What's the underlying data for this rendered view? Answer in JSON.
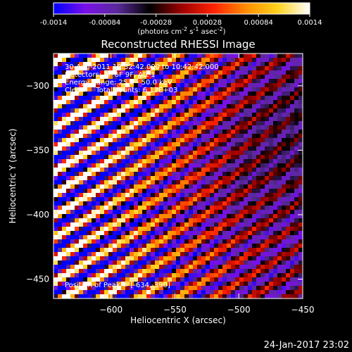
{
  "colors": {
    "background": "#000000",
    "foreground": "#ffffff",
    "colormap": [
      "#0000ff",
      "#7a10e8",
      "#5a2a9a",
      "#000000",
      "#9c0000",
      "#ff2200",
      "#ff8c00",
      "#ffd21e",
      "#ffffff"
    ]
  },
  "colorbar": {
    "min": -0.0014,
    "max": 0.0014,
    "tick_labels": [
      "-0.0014",
      "-0.00084",
      "-0.00028",
      "0.00028",
      "0.00084",
      "0.0014"
    ],
    "tick_values": [
      -0.0014,
      -0.00084,
      -0.00028,
      0.00028,
      0.00084,
      0.0014
    ],
    "unit_label": "(photons cm",
    "unit_exp1": "-2",
    "unit_mid": " s",
    "unit_exp2": "-1",
    "unit_end": " asec",
    "unit_exp3": "-2",
    "unit_close": ")"
  },
  "chart_data": {
    "type": "heatmap",
    "title": "Reconstructed RHESSI Image",
    "xlabel": "Heliocentric X (arcsec)",
    "ylabel": "Heliocentric Y (arcsec)",
    "xlim": [
      -645,
      -450
    ],
    "ylim": [
      -465,
      -275
    ],
    "x_ticks": [
      -600,
      -550,
      -500,
      -450
    ],
    "x_tick_labels": [
      "−600",
      "−550",
      "−500",
      "−450"
    ],
    "y_ticks": [
      -300,
      -350,
      -400,
      -450
    ],
    "y_tick_labels": [
      "−300",
      "−350",
      "−400",
      "−450"
    ],
    "grid": false,
    "annotations": [
      "30-Aug-2011 10:32:42.000 to 10:42:42.000",
      "Detectors: 3F 6F 9F, Att 1",
      "Energy Range: 25.0 - 50.0 keV",
      "Clean     Total counts: 6.12E+03"
    ],
    "peak_label": "Position of Peak = [-634,-390]",
    "peak": [
      -634,
      -390
    ]
  },
  "footer": {
    "timestamp": "24-Jan-2017 23:02"
  }
}
